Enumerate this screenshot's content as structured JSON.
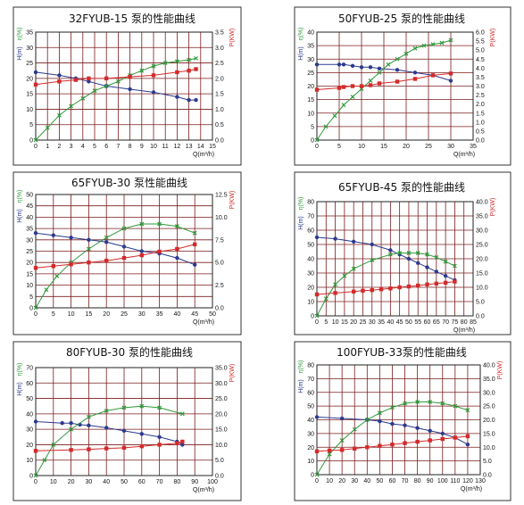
{
  "colors": {
    "grid": "#7a1c1c",
    "head": "#2b3a8f",
    "eff": "#2f9a3a",
    "power": "#d42a2a"
  },
  "chart_data": [
    {
      "type": "line",
      "title": "32FYUB-15 泵的性能曲线",
      "xlabel": "Q(m³/h)",
      "y1label": "H(m)",
      "effLabel": "η(%)",
      "y2label": "P(KW)",
      "xticks": [
        "0",
        "1",
        "2",
        "3",
        "4",
        "5",
        "6",
        "7",
        "8",
        "9",
        "10",
        "11",
        "12",
        "13",
        "14",
        "15"
      ],
      "xlim": [
        0,
        15
      ],
      "y1lim": [
        0,
        35
      ],
      "y2lim": [
        0,
        3.5
      ],
      "y1ticks": [
        "0",
        "5",
        "10",
        "15",
        "20",
        "25",
        "30",
        "35"
      ],
      "y2ticks": [
        "0.0",
        "0.5",
        "1.0",
        "1.5",
        "2.0",
        "2.5",
        "3.0",
        "3.5"
      ],
      "series": [
        {
          "key": "head",
          "axis": "y1",
          "x": [
            0,
            2,
            3.4,
            4.5,
            6,
            8,
            10,
            12,
            13,
            13.6
          ],
          "y": [
            22,
            21,
            20,
            19,
            17.5,
            16.5,
            15.5,
            14,
            13,
            13
          ]
        },
        {
          "key": "eff",
          "axis": "y1",
          "x": [
            0,
            1,
            2,
            3,
            4,
            5,
            6,
            7,
            8,
            9,
            10,
            11,
            12,
            13,
            13.6
          ],
          "y": [
            0,
            4,
            8,
            11,
            13.5,
            16,
            17.5,
            19,
            21,
            22.5,
            24,
            25,
            25.5,
            26,
            26.5
          ]
        },
        {
          "key": "power",
          "axis": "y2",
          "x": [
            0,
            2,
            3.4,
            4.5,
            6,
            8,
            10,
            12,
            13,
            13.6
          ],
          "y": [
            1.8,
            1.9,
            1.95,
            2.0,
            2.0,
            2.05,
            2.1,
            2.2,
            2.25,
            2.3
          ]
        }
      ]
    },
    {
      "type": "line",
      "title": "50FYUB-25 泵的性能曲线",
      "xlabel": "Q(m³/h)",
      "y1label": "H(m)",
      "effLabel": "η(%)",
      "y2label": "P(KW)",
      "xticks": [
        "0",
        "5",
        "10",
        "15",
        "20",
        "25",
        "30",
        "35"
      ],
      "xlim": [
        0,
        35
      ],
      "y1lim": [
        0,
        40
      ],
      "y2lim": [
        0,
        6.0
      ],
      "y1ticks": [
        "0",
        "5",
        "10",
        "15",
        "20",
        "25",
        "30",
        "35",
        "40"
      ],
      "y2ticks": [
        "0.0",
        "0.5",
        "1.0",
        "1.5",
        "2.0",
        "2.5",
        "3.0",
        "3.5",
        "4.0",
        "4.5",
        "5.0",
        "5.5",
        "6.0"
      ],
      "series": [
        {
          "key": "head",
          "axis": "y1",
          "x": [
            0,
            5,
            6,
            8,
            10,
            12,
            14,
            18,
            22,
            26,
            30
          ],
          "y": [
            28,
            28,
            28,
            27.5,
            27,
            27,
            26.5,
            26,
            25,
            24,
            22
          ]
        },
        {
          "key": "eff",
          "axis": "y1",
          "x": [
            0,
            2,
            4,
            6,
            8,
            10,
            12,
            14,
            16,
            18,
            20,
            22,
            24,
            26,
            28,
            30
          ],
          "y": [
            0,
            5,
            9,
            13,
            16,
            19,
            22,
            25,
            28,
            30,
            32,
            34,
            35,
            35.5,
            36,
            37
          ]
        },
        {
          "key": "power",
          "axis": "y2",
          "x": [
            0,
            5,
            6,
            8,
            10,
            12,
            14,
            18,
            22,
            26,
            30
          ],
          "y": [
            2.8,
            2.9,
            2.95,
            3.0,
            3.0,
            3.05,
            3.15,
            3.25,
            3.4,
            3.6,
            3.7
          ]
        }
      ]
    },
    {
      "type": "line",
      "title": "65FYUB-30 泵性能曲线",
      "xlabel": "Q(m³/h)",
      "y1label": "H(m)",
      "effLabel": "η(%)",
      "y2label": "P(KW)",
      "xticks": [
        "0",
        "5",
        "10",
        "15",
        "20",
        "25",
        "30",
        "35",
        "40",
        "45",
        "50"
      ],
      "xlim": [
        0,
        50
      ],
      "y1lim": [
        0,
        50
      ],
      "y2lim": [
        0,
        12.5
      ],
      "y1ticks": [
        "0",
        "5",
        "10",
        "15",
        "20",
        "25",
        "30",
        "35",
        "40",
        "45",
        "50"
      ],
      "y2ticks": [
        "0.0",
        "2.5",
        "5.0",
        "7.5",
        "10.0",
        "12.5"
      ],
      "series": [
        {
          "key": "head",
          "axis": "y1",
          "x": [
            0,
            5,
            10,
            15,
            20,
            25,
            30,
            35,
            40,
            45
          ],
          "y": [
            33,
            32,
            31,
            30,
            29,
            27,
            25,
            24,
            22,
            19
          ]
        },
        {
          "key": "eff",
          "axis": "y1",
          "x": [
            0,
            3,
            6,
            10,
            15,
            20,
            25,
            30,
            35,
            40,
            45
          ],
          "y": [
            0,
            8,
            14,
            20,
            26,
            31,
            35,
            37,
            37,
            36,
            33
          ]
        },
        {
          "key": "power",
          "axis": "y2",
          "x": [
            0,
            5,
            10,
            15,
            20,
            25,
            30,
            35,
            40,
            45
          ],
          "y": [
            4.4,
            4.6,
            4.8,
            5.0,
            5.2,
            5.5,
            5.8,
            6.2,
            6.5,
            7.0
          ]
        }
      ]
    },
    {
      "type": "line",
      "title": "65FYUB-45 泵的性能曲线",
      "xlabel": "Q(m³/h)",
      "y1label": "H(m)",
      "effLabel": "η(%)",
      "y2label": "P(KW)",
      "xticks": [
        "0",
        "5",
        "10",
        "15",
        "20",
        "25",
        "30",
        "35",
        "40",
        "45",
        "50",
        "55",
        "60",
        "65",
        "70",
        "75",
        "80",
        "85"
      ],
      "xlim": [
        0,
        85
      ],
      "y1lim": [
        0,
        80
      ],
      "y2lim": [
        0,
        40
      ],
      "y1ticks": [
        "0",
        "10",
        "20",
        "30",
        "40",
        "50",
        "60",
        "70",
        "80"
      ],
      "y2ticks": [
        "0.0",
        "5.0",
        "10.0",
        "15.0",
        "20.0",
        "25.0",
        "30.0",
        "35.0",
        "40.0"
      ],
      "series": [
        {
          "key": "head",
          "axis": "y1",
          "x": [
            0,
            10,
            20,
            30,
            40,
            45,
            50,
            55,
            60,
            65,
            70,
            75
          ],
          "y": [
            55,
            54,
            52,
            50,
            46,
            43,
            40,
            37,
            34,
            31,
            28,
            25
          ]
        },
        {
          "key": "eff",
          "axis": "y1",
          "x": [
            0,
            5,
            10,
            15,
            20,
            30,
            40,
            45,
            50,
            55,
            60,
            65,
            70,
            75
          ],
          "y": [
            0,
            12,
            22,
            28,
            33,
            39,
            43,
            44,
            44,
            44,
            43,
            41,
            38,
            35
          ]
        },
        {
          "key": "power",
          "axis": "y2",
          "x": [
            0,
            10,
            20,
            25,
            30,
            35,
            40,
            45,
            50,
            55,
            60,
            65,
            70,
            75
          ],
          "y": [
            7.5,
            8.0,
            8.5,
            8.8,
            9.0,
            9.3,
            9.6,
            10.0,
            10.3,
            10.6,
            11.0,
            11.3,
            11.6,
            12.0
          ]
        }
      ]
    },
    {
      "type": "line",
      "title": "80FYUB-30 泵的性能曲线",
      "xlabel": "Q(m³/h)",
      "y1label": "H(m)",
      "effLabel": "η(%)",
      "y2label": "P(KW)",
      "xticks": [
        "0",
        "10",
        "20",
        "30",
        "40",
        "50",
        "60",
        "70",
        "80",
        "90",
        "100"
      ],
      "xlim": [
        0,
        100
      ],
      "y1lim": [
        0,
        70
      ],
      "y2lim": [
        0,
        35
      ],
      "y1ticks": [
        "0",
        "10",
        "20",
        "30",
        "40",
        "50",
        "60",
        "70"
      ],
      "y2ticks": [
        "0.0",
        "5.0",
        "10.0",
        "15.0",
        "20.0",
        "25.0",
        "30.0",
        "35.0"
      ],
      "series": [
        {
          "key": "head",
          "axis": "y1",
          "x": [
            0,
            15,
            20,
            25,
            30,
            40,
            50,
            60,
            70,
            80,
            83
          ],
          "y": [
            35,
            34,
            34,
            33,
            32.5,
            31,
            29,
            27,
            25,
            22,
            20
          ]
        },
        {
          "key": "eff",
          "axis": "y1",
          "x": [
            0,
            5,
            10,
            20,
            30,
            40,
            50,
            60,
            70,
            83
          ],
          "y": [
            0,
            10,
            20,
            30,
            38,
            42,
            44,
            45,
            44,
            40
          ]
        },
        {
          "key": "power",
          "axis": "y2",
          "x": [
            0,
            20,
            30,
            40,
            50,
            60,
            70,
            80,
            83
          ],
          "y": [
            8.0,
            8.3,
            8.5,
            8.8,
            9.0,
            9.5,
            10.0,
            10.5,
            11.0
          ]
        }
      ]
    },
    {
      "type": "line",
      "title": "100FYUB-33泵的性能曲线",
      "xlabel": "Q(m³/h)",
      "y1label": "H(m)",
      "effLabel": "η(%)",
      "y2label": "P(KW)",
      "xticks": [
        "0",
        "10",
        "20",
        "30",
        "40",
        "50",
        "60",
        "70",
        "80",
        "90",
        "100",
        "110",
        "120",
        "130"
      ],
      "xlim": [
        0,
        130
      ],
      "y1lim": [
        0,
        80
      ],
      "y2lim": [
        0,
        40
      ],
      "y1ticks": [
        "0",
        "10",
        "20",
        "30",
        "40",
        "50",
        "60",
        "70",
        "80"
      ],
      "y2ticks": [
        "0.0",
        "5.0",
        "10.0",
        "15.0",
        "20.0",
        "25.0",
        "30.0",
        "35.0",
        "40.0"
      ],
      "series": [
        {
          "key": "head",
          "axis": "y1",
          "x": [
            0,
            20,
            40,
            50,
            60,
            70,
            80,
            90,
            100,
            110,
            120
          ],
          "y": [
            42,
            41,
            40,
            39,
            37,
            36,
            34,
            32,
            30,
            27,
            22
          ]
        },
        {
          "key": "eff",
          "axis": "y1",
          "x": [
            0,
            10,
            20,
            30,
            40,
            50,
            60,
            70,
            80,
            90,
            100,
            110,
            120
          ],
          "y": [
            0,
            15,
            25,
            33,
            40,
            45,
            49,
            52,
            53,
            53,
            52,
            50,
            47
          ]
        },
        {
          "key": "power",
          "axis": "y2",
          "x": [
            0,
            10,
            20,
            30,
            40,
            50,
            60,
            70,
            80,
            90,
            100,
            110,
            120
          ],
          "y": [
            8.5,
            8.8,
            9.0,
            9.5,
            10.0,
            10.5,
            11.0,
            11.5,
            12.0,
            12.5,
            13.0,
            13.5,
            14.0
          ]
        }
      ]
    }
  ]
}
